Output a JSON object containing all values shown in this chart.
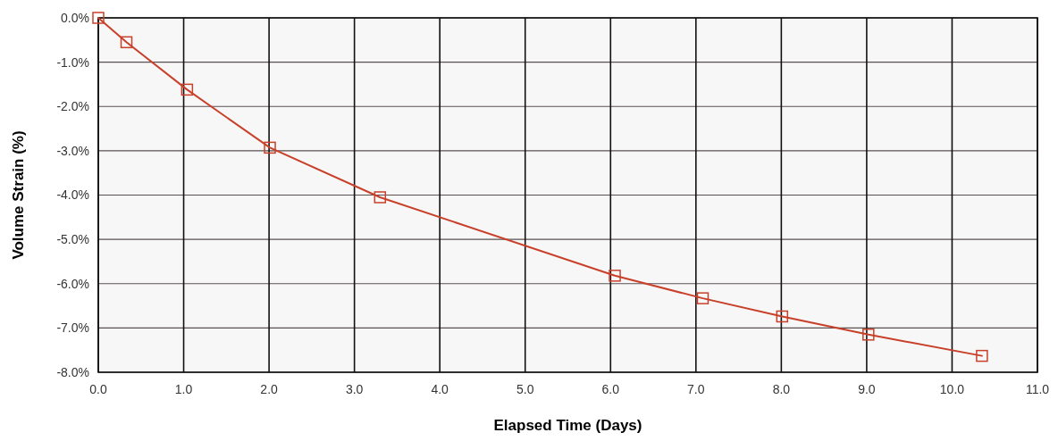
{
  "chart_data": {
    "type": "line",
    "xlabel": "Elapsed Time (Days)",
    "ylabel": "Volume Strain (%)",
    "x": [
      0.0,
      0.33,
      1.04,
      2.01,
      3.3,
      6.05,
      7.08,
      8.01,
      9.02,
      10.35
    ],
    "series": [
      {
        "color": "#c8402a",
        "values": [
          0.0,
          -0.55,
          -1.62,
          -2.93,
          -4.05,
          -5.82,
          -6.33,
          -6.74,
          -7.15,
          -7.63
        ]
      }
    ],
    "xlim": [
      0,
      11
    ],
    "xticks": [
      {
        "value": 0,
        "label": "0.0"
      },
      {
        "value": 1,
        "label": "1.0"
      },
      {
        "value": 2,
        "label": "2.0"
      },
      {
        "value": 3,
        "label": "3.0"
      },
      {
        "value": 4,
        "label": "4.0"
      },
      {
        "value": 5,
        "label": "5.0"
      },
      {
        "value": 6,
        "label": "6.0"
      },
      {
        "value": 7,
        "label": "7.0"
      },
      {
        "value": 8,
        "label": "8.0"
      },
      {
        "value": 9,
        "label": "9.0"
      },
      {
        "value": 10,
        "label": "10.0"
      },
      {
        "value": 11,
        "label": "11.0"
      }
    ],
    "ylim": [
      -8,
      0
    ],
    "yticks": [
      {
        "value": 0,
        "label": "0.0%"
      },
      {
        "value": -1,
        "label": "-1.0%"
      },
      {
        "value": -2,
        "label": "-2.0%"
      },
      {
        "value": -3,
        "label": "-3.0%"
      },
      {
        "value": -4,
        "label": "-4.0%"
      },
      {
        "value": -5,
        "label": "-5.0%"
      },
      {
        "value": -6,
        "label": "-6.0%"
      },
      {
        "value": -7,
        "label": "-7.0%"
      },
      {
        "value": -8,
        "label": "-8.0%"
      }
    ],
    "grid": true,
    "marker": "square",
    "line_style": "solid"
  }
}
